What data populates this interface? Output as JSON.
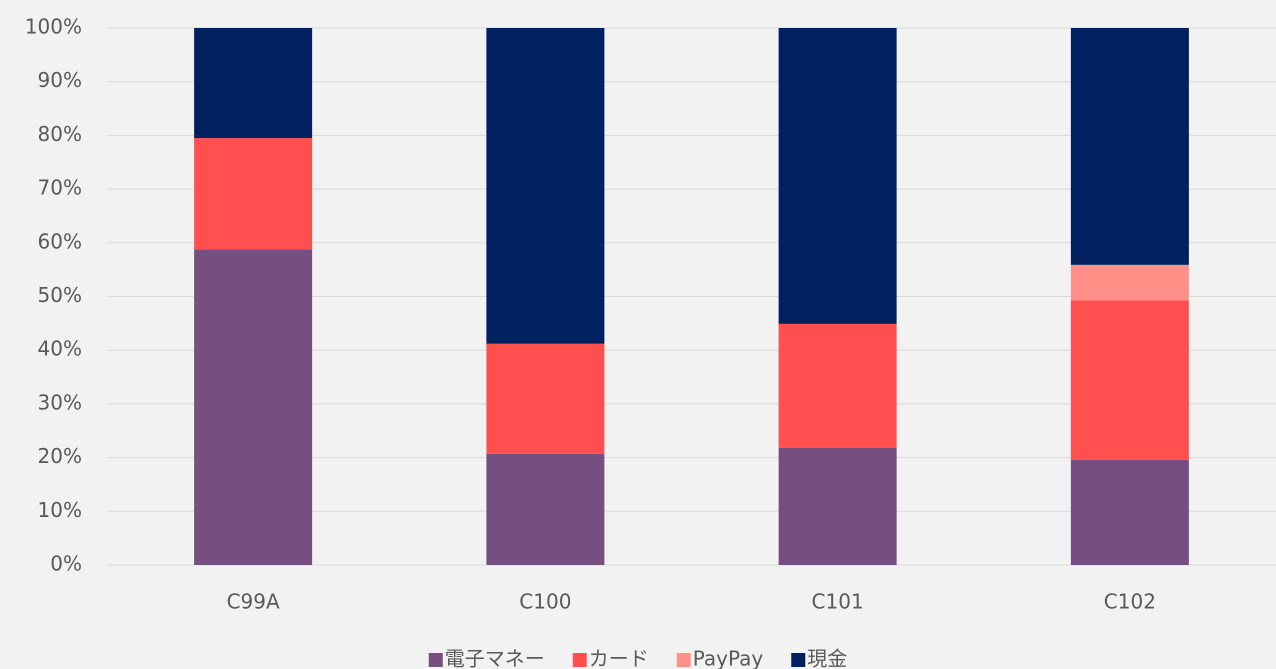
{
  "chart_data": {
    "type": "stacked_bar",
    "categories": [
      "C99A",
      "C100",
      "C101",
      "C102"
    ],
    "series": [
      {
        "name": "電子マネー",
        "color": "#764f80",
        "values": [
          58.8,
          20.7,
          21.8,
          19.6
        ]
      },
      {
        "name": "カード",
        "color": "#ff4f4f",
        "values": [
          20.7,
          20.5,
          23.1,
          29.7
        ]
      },
      {
        "name": "PayPay",
        "color": "#ff8f87",
        "values": [
          0,
          0,
          0,
          6.6
        ]
      },
      {
        "name": "現金",
        "color": "#002060",
        "values": [
          20.5,
          58.8,
          55.1,
          44.1
        ]
      }
    ],
    "ylim": [
      0,
      100
    ],
    "yticks": [
      {
        "value": 0,
        "label": "0%"
      },
      {
        "value": 10,
        "label": "10%"
      },
      {
        "value": 20,
        "label": "20%"
      },
      {
        "value": 30,
        "label": "30%"
      },
      {
        "value": 40,
        "label": "40%"
      },
      {
        "value": 50,
        "label": "50%"
      },
      {
        "value": 60,
        "label": "60%"
      },
      {
        "value": 70,
        "label": "70%"
      },
      {
        "value": 80,
        "label": "80%"
      },
      {
        "value": 90,
        "label": "90%"
      },
      {
        "value": 100,
        "label": "100%"
      }
    ],
    "grid": true,
    "legend": "bottom"
  }
}
